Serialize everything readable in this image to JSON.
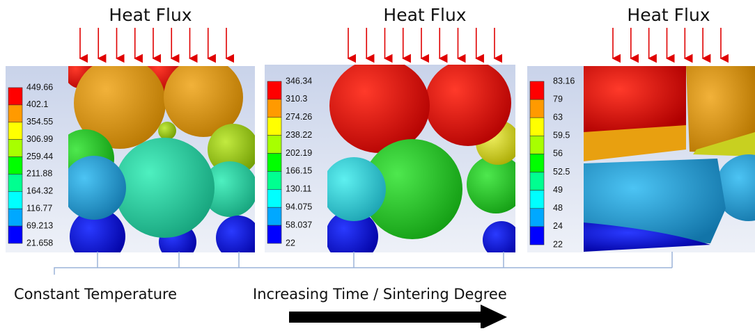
{
  "panels": [
    {
      "title": "Heat Flux",
      "legend": [
        "449.66",
        "402.1",
        "354.55",
        "306.99",
        "259.44",
        "211.88",
        "164.32",
        "116.77",
        "69.213",
        "21.658"
      ]
    },
    {
      "title": "Heat Flux",
      "legend": [
        "346.34",
        "310.3",
        "274.26",
        "238.22",
        "202.19",
        "166.15",
        "130.11",
        "94.075",
        "58.037",
        "22"
      ]
    },
    {
      "title": "Heat Flux",
      "legend": [
        "83.16",
        "79",
        "63",
        "59.5",
        "56",
        "52.5",
        "49",
        "48",
        "24",
        "22"
      ]
    }
  ],
  "labels": {
    "left": "Constant Temperature",
    "right": "Increasing Time / Sintering Degree"
  }
}
